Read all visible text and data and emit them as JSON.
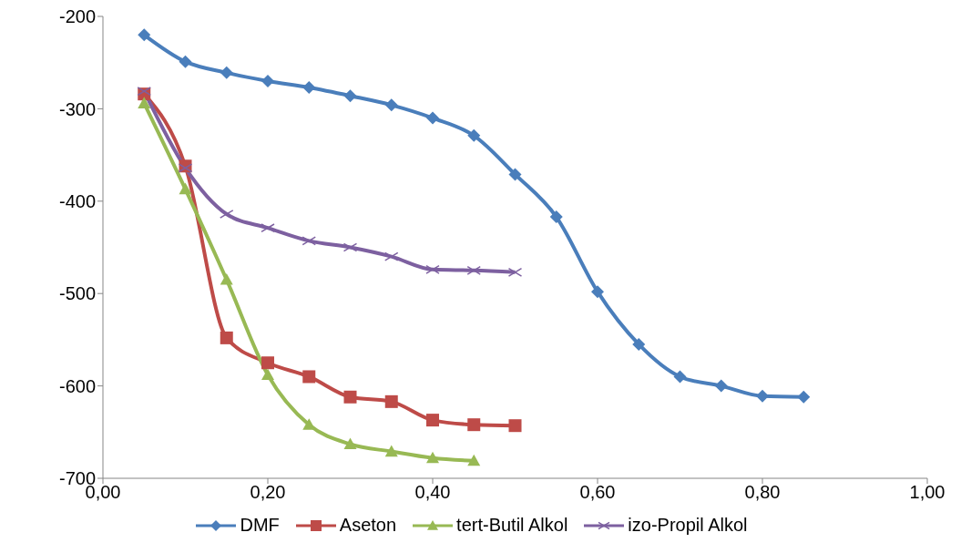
{
  "chart_data": {
    "type": "line",
    "xlim": [
      0,
      1
    ],
    "xticks": [
      {
        "value": 0,
        "label": "0,00"
      },
      {
        "value": 0.2,
        "label": "0,20"
      },
      {
        "value": 0.4,
        "label": "0,40"
      },
      {
        "value": 0.6,
        "label": "0,60"
      },
      {
        "value": 0.8,
        "label": "0,80"
      },
      {
        "value": 1,
        "label": "1,00"
      }
    ],
    "ylim": [
      -700,
      -200
    ],
    "yticks": [
      -700,
      -600,
      -500,
      -400,
      -300,
      -200
    ],
    "grid": false,
    "legend": "bottom",
    "line_style": "solid",
    "series": [
      {
        "name": "DMF",
        "color": "#4a7ebb",
        "marker": "diamond",
        "x": [
          0.05,
          0.1,
          0.15,
          0.2,
          0.25,
          0.3,
          0.35,
          0.4,
          0.45,
          0.5,
          0.55,
          0.6,
          0.65,
          0.7,
          0.75,
          0.8,
          0.85
        ],
        "values": [
          -220,
          -249,
          -261,
          -270,
          -277,
          -286,
          -296,
          -310,
          -329,
          -371,
          -417,
          -498,
          -555,
          -590,
          -600,
          -611,
          -612
        ]
      },
      {
        "name": "Aseton",
        "color": "#be4b48",
        "marker": "square",
        "x": [
          0.05,
          0.1,
          0.15,
          0.2,
          0.25,
          0.3,
          0.35,
          0.4,
          0.45,
          0.5
        ],
        "values": [
          -284,
          -362,
          -548,
          -575,
          -590,
          -612,
          -617,
          -637,
          -642,
          -643
        ]
      },
      {
        "name": "tert-Butil Alkol",
        "color": "#98b954",
        "marker": "triangle",
        "x": [
          0.05,
          0.1,
          0.15,
          0.2,
          0.25,
          0.3,
          0.35,
          0.4,
          0.45
        ],
        "values": [
          -294,
          -387,
          -485,
          -588,
          -642,
          -663,
          -671,
          -678,
          -681
        ]
      },
      {
        "name": "izo-Propil Alkol",
        "color": "#7d60a0",
        "marker": "cross",
        "x": [
          0.05,
          0.1,
          0.15,
          0.2,
          0.25,
          0.3,
          0.35,
          0.4,
          0.45,
          0.5
        ],
        "values": [
          -281,
          -364,
          -414,
          -429,
          -443,
          -450,
          -460,
          -474,
          -475,
          -477
        ]
      }
    ]
  }
}
